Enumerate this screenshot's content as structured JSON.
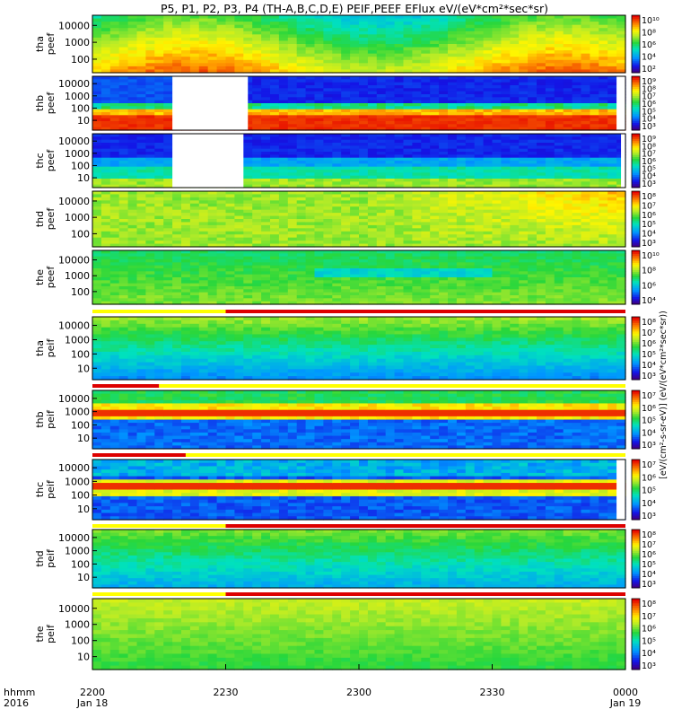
{
  "chart_data": {
    "type": "heatmap",
    "title": "P5, P1, P2, P3, P4 (TH-A,B,C,D,E) PEIF,PEEF EFlux eV/(eV*cm²*sec*sr)",
    "colorbar_units_label": "[eV/(cm²-s-sr-eV)] (eV/(eV*cm²*sec*sr))",
    "time_axis": {
      "row_labels": [
        "hhmm",
        "2016"
      ],
      "ticks": [
        {
          "value": "2200",
          "date": "Jan 18"
        },
        {
          "value": "2230",
          "date": ""
        },
        {
          "value": "2300",
          "date": ""
        },
        {
          "value": "2330",
          "date": ""
        },
        {
          "value": "0000",
          "date": "Jan 19"
        }
      ],
      "range": [
        "2016-01-18 22:00",
        "2016-01-19 00:00"
      ]
    },
    "colormap": "rainbow (blue-green-yellow-red), log scale",
    "panels": [
      {
        "ylabel": [
          "tha",
          "peef"
        ],
        "yticks": [
          "10000",
          "1000",
          "100"
        ],
        "ylog": true,
        "cb_ticks": [
          "10¹⁰",
          "10⁸",
          "10⁶",
          "10⁴",
          "10²"
        ],
        "bar_above": false
      },
      {
        "ylabel": [
          "thb",
          "peef"
        ],
        "yticks": [
          "10000",
          "1000",
          "100",
          "10"
        ],
        "ylog": true,
        "cb_ticks": [
          "10⁹",
          "10⁸",
          "10⁷",
          "10⁶",
          "10⁵",
          "10⁴",
          "10³"
        ],
        "bar_above": false,
        "data_gaps": [
          [
            "22:18",
            "22:35"
          ],
          [
            "23:58",
            "00:00"
          ]
        ]
      },
      {
        "ylabel": [
          "thc",
          "peef"
        ],
        "yticks": [
          "10000",
          "1000",
          "100",
          "10"
        ],
        "ylog": true,
        "cb_ticks": [
          "10⁹",
          "10⁸",
          "10⁷",
          "10⁶",
          "10⁵",
          "10⁴",
          "10³"
        ],
        "bar_above": false,
        "data_gaps": [
          [
            "22:18",
            "22:34"
          ],
          [
            "23:59",
            "00:00"
          ]
        ]
      },
      {
        "ylabel": [
          "thd",
          "peef"
        ],
        "yticks": [
          "10000",
          "1000",
          "100"
        ],
        "ylog": true,
        "cb_ticks": [
          "10⁸",
          "10⁷",
          "10⁶",
          "10⁵",
          "10⁴",
          "10³"
        ],
        "bar_above": false
      },
      {
        "ylabel": [
          "the",
          "peef"
        ],
        "yticks": [
          "10000",
          "1000",
          "100"
        ],
        "ylog": true,
        "cb_ticks": [
          "10¹⁰",
          "10⁸",
          "10⁶",
          "10⁴"
        ],
        "bar_above": false
      },
      {
        "ylabel": [
          "tha",
          "peif"
        ],
        "yticks": [
          "10000",
          "1000",
          "100",
          "10"
        ],
        "ylog": true,
        "cb_ticks": [
          "10⁸",
          "10⁷",
          "10⁶",
          "10⁵",
          "10⁴",
          "10³"
        ],
        "bar_above": true
      },
      {
        "ylabel": [
          "thb",
          "peif"
        ],
        "yticks": [
          "10000",
          "1000",
          "100",
          "10"
        ],
        "ylog": true,
        "cb_ticks": [
          "10⁷",
          "10⁶",
          "10⁵",
          "10⁴",
          "10³"
        ],
        "bar_above": true
      },
      {
        "ylabel": [
          "thc",
          "peif"
        ],
        "yticks": [
          "10000",
          "1000",
          "100",
          "10"
        ],
        "ylog": true,
        "cb_ticks": [
          "10⁷",
          "10⁶",
          "10⁵",
          "10⁴",
          "10³"
        ],
        "bar_above": true,
        "data_gaps": [
          [
            "23:58",
            "00:00"
          ]
        ]
      },
      {
        "ylabel": [
          "thd",
          "peif"
        ],
        "yticks": [
          "10000",
          "1000",
          "100",
          "10"
        ],
        "ylog": true,
        "cb_ticks": [
          "10⁸",
          "10⁷",
          "10⁶",
          "10⁵",
          "10⁴",
          "10³"
        ],
        "bar_above": true
      },
      {
        "ylabel": [
          "the",
          "peif"
        ],
        "yticks": [
          "10000",
          "1000",
          "100",
          "10"
        ],
        "ylog": true,
        "cb_ticks": [
          "10⁸",
          "10⁷",
          "10⁶",
          "10⁵",
          "10⁴",
          "10³"
        ],
        "bar_above": true
      }
    ],
    "mode_bars_colors": {
      "fast": "#dd0000",
      "slow": "#ffff00"
    }
  }
}
